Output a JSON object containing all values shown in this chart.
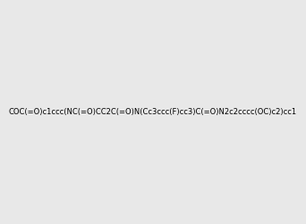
{
  "smiles": "COC(=O)c1ccc(NC(=O)CC2C(=O)N(Cc3ccc(F)cc3)C(=O)N2c2cccc(OC)c2)cc1",
  "image_size": 300,
  "background_color": "#e8e8e8",
  "title": ""
}
